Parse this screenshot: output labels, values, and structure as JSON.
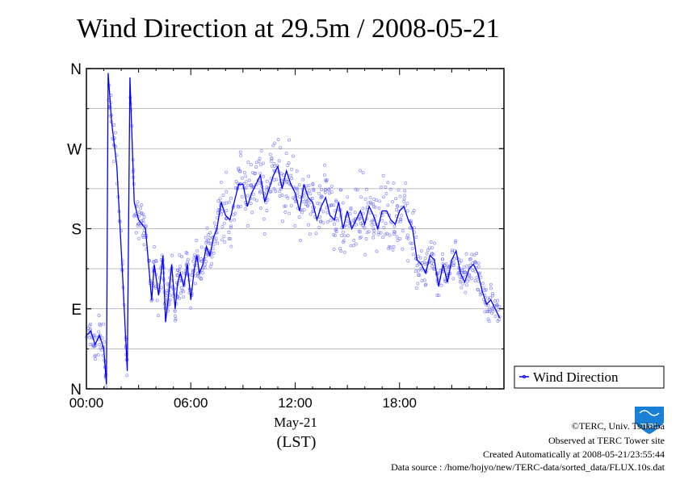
{
  "chart_data": {
    "type": "scatter",
    "title": "Wind Direction at 29.5m / 2008-05-21",
    "xlabel": "May-21",
    "xunit": "(LST)",
    "x_ticks": [
      "00:00",
      "06:00",
      "12:00",
      "18:00"
    ],
    "y_ticks": [
      "N",
      "E",
      "S",
      "W",
      "N"
    ],
    "xlim": [
      0,
      24
    ],
    "ylim": [
      0,
      360
    ],
    "grid": true,
    "legend": {
      "placement": "right",
      "entries": [
        "Wind Direction"
      ]
    },
    "series": [
      {
        "name": "Wind Direction",
        "color": "#0000ff",
        "scatter_color": "#6666ff",
        "x": [
          0.0,
          0.25,
          0.5,
          0.75,
          1.0,
          1.15,
          1.25,
          1.45,
          1.75,
          2.1,
          2.35,
          2.5,
          2.75,
          3.0,
          3.2,
          3.4,
          3.75,
          3.9,
          4.15,
          4.4,
          4.55,
          4.75,
          4.9,
          5.1,
          5.25,
          5.4,
          5.6,
          5.8,
          6.0,
          6.2,
          6.35,
          6.5,
          6.7,
          6.9,
          7.1,
          7.3,
          7.5,
          7.75,
          8.0,
          8.25,
          8.5,
          8.75,
          9.0,
          9.25,
          9.5,
          9.75,
          10.0,
          10.25,
          10.5,
          10.75,
          11.0,
          11.25,
          11.5,
          11.75,
          12.0,
          12.25,
          12.5,
          12.75,
          13.0,
          13.25,
          13.5,
          13.75,
          14.0,
          14.25,
          14.5,
          14.75,
          15.0,
          15.25,
          15.5,
          15.75,
          16.0,
          16.25,
          16.5,
          16.75,
          17.0,
          17.25,
          17.5,
          17.75,
          18.0,
          18.25,
          18.5,
          18.75,
          19.0,
          19.25,
          19.5,
          19.75,
          20.0,
          20.25,
          20.5,
          20.75,
          21.0,
          21.25,
          21.5,
          21.75,
          22.0,
          22.25,
          22.5,
          22.75,
          23.0,
          23.25,
          23.5,
          23.75
        ],
        "values": [
          60,
          65,
          50,
          60,
          45,
          5,
          355,
          300,
          250,
          120,
          20,
          350,
          210,
          190,
          185,
          180,
          100,
          140,
          105,
          150,
          75,
          110,
          140,
          90,
          120,
          130,
          115,
          140,
          100,
          135,
          150,
          130,
          140,
          160,
          150,
          170,
          180,
          210,
          195,
          190,
          210,
          230,
          230,
          205,
          220,
          230,
          240,
          210,
          225,
          240,
          250,
          225,
          245,
          230,
          220,
          200,
          230,
          215,
          210,
          190,
          205,
          215,
          195,
          190,
          210,
          180,
          200,
          180,
          190,
          200,
          185,
          205,
          195,
          180,
          200,
          200,
          190,
          185,
          200,
          205,
          190,
          180,
          145,
          140,
          130,
          150,
          145,
          115,
          140,
          120,
          145,
          155,
          130,
          120,
          135,
          140,
          130,
          110,
          95,
          100,
          90,
          80
        ]
      }
    ]
  },
  "footer": {
    "copyright": "©TERC, Univ. Tsukuba",
    "observed": "Observed at TERC Tower site",
    "created": "Created Automatically at 2008-05-21/23:55:44",
    "source": "Data source : /home/hojyo/new/TERC-data/sorted_data/FLUX.10s.dat"
  },
  "logo": {
    "text": "TERC",
    "color": "#1a7fd6"
  }
}
